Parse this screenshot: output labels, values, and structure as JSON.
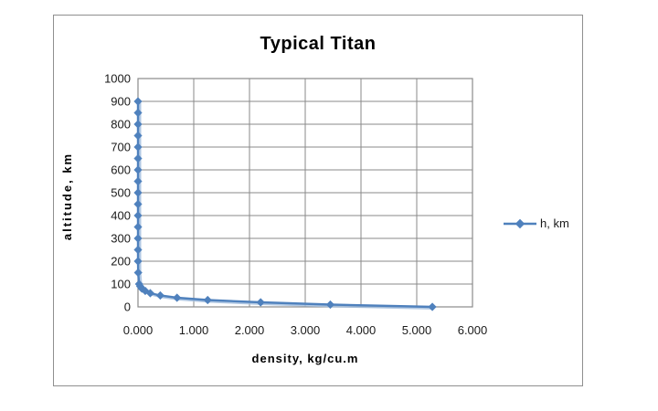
{
  "chart_data": {
    "type": "line",
    "title": "Typical Titan",
    "xlabel": "density, kg/cu.m",
    "ylabel": "altitude, km",
    "series": [
      {
        "name": "h, km",
        "x_density": [
          0,
          0,
          0,
          0,
          0,
          0,
          0,
          0,
          0,
          0,
          0,
          0,
          0,
          0.0001,
          0.0005,
          0.003,
          0.02,
          0.04,
          0.07,
          0.13,
          0.22,
          0.4,
          0.7,
          1.25,
          2.2,
          3.45,
          5.28
        ],
        "y_altitude_km": [
          900,
          850,
          800,
          750,
          700,
          650,
          600,
          550,
          500,
          450,
          400,
          350,
          300,
          250,
          200,
          150,
          100,
          90,
          80,
          70,
          60,
          50,
          40,
          30,
          20,
          10,
          0
        ]
      }
    ],
    "xlim": [
      0,
      6
    ],
    "ylim": [
      0,
      1000
    ],
    "x_tick_labels": [
      "0.000",
      "1.000",
      "2.000",
      "3.000",
      "4.000",
      "5.000",
      "6.000"
    ],
    "y_tick_labels": [
      "0",
      "100",
      "200",
      "300",
      "400",
      "500",
      "600",
      "700",
      "800",
      "900",
      "1000"
    ],
    "grid": true,
    "legend_position": "right",
    "series_color": "#4F81BD",
    "series_halo_color": "#9FBBDD",
    "gridline_color": "#8a8a8a",
    "axis_text_color": "#1a1a1a"
  }
}
